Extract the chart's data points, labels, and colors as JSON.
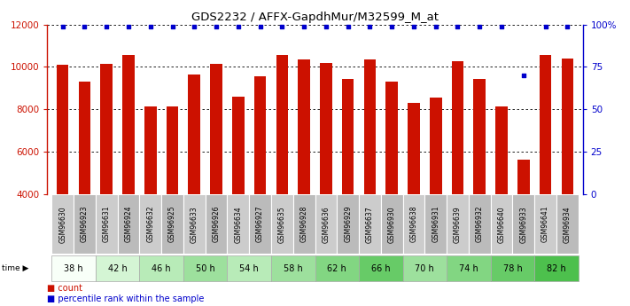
{
  "title": "GDS2232 / AFFX-GapdhMur/M32599_M_at",
  "samples": [
    "GSM96630",
    "GSM96923",
    "GSM96631",
    "GSM96924",
    "GSM96632",
    "GSM96925",
    "GSM96633",
    "GSM96926",
    "GSM96634",
    "GSM96927",
    "GSM96635",
    "GSM96928",
    "GSM96636",
    "GSM96929",
    "GSM96637",
    "GSM96930",
    "GSM96638",
    "GSM96931",
    "GSM96639",
    "GSM96932",
    "GSM96640",
    "GSM96933",
    "GSM96641",
    "GSM96934"
  ],
  "counts": [
    10100,
    9300,
    10150,
    10550,
    8150,
    8150,
    9650,
    10150,
    8600,
    9550,
    10550,
    10350,
    10200,
    9450,
    10350,
    9300,
    8300,
    8550,
    10250,
    9450,
    8150,
    5650,
    10550,
    10400
  ],
  "percentile_ranks": [
    99,
    99,
    99,
    99,
    99,
    99,
    99,
    99,
    99,
    99,
    99,
    99,
    99,
    99,
    99,
    99,
    99,
    99,
    99,
    99,
    99,
    70,
    99,
    99
  ],
  "time_labels": [
    "38 h",
    "42 h",
    "46 h",
    "50 h",
    "54 h",
    "58 h",
    "62 h",
    "66 h",
    "70 h",
    "74 h",
    "78 h",
    "82 h"
  ],
  "time_colors": [
    "#f5fff5",
    "#ccffcc",
    "#aaffaa",
    "#99ee99",
    "#88ee88",
    "#77dd77",
    "#66cc66",
    "#55bb55",
    "#99dd99",
    "#88cc88",
    "#77cc77",
    "#55bb55"
  ],
  "ylim_left": [
    4000,
    12000
  ],
  "ylim_right": [
    0,
    100
  ],
  "yticks_left": [
    4000,
    6000,
    8000,
    10000,
    12000
  ],
  "yticks_right": [
    0,
    25,
    50,
    75,
    100
  ],
  "bar_color": "#cc1100",
  "dot_color": "#0000cc",
  "bg_color": "#ffffff",
  "sample_bg_odd": "#cccccc",
  "sample_bg_even": "#bbbbbb",
  "legend_count_color": "#cc1100",
  "legend_pct_color": "#0000cc",
  "title_color": "#000000",
  "left_tick_color": "#cc1100",
  "right_tick_color": "#0000cc"
}
